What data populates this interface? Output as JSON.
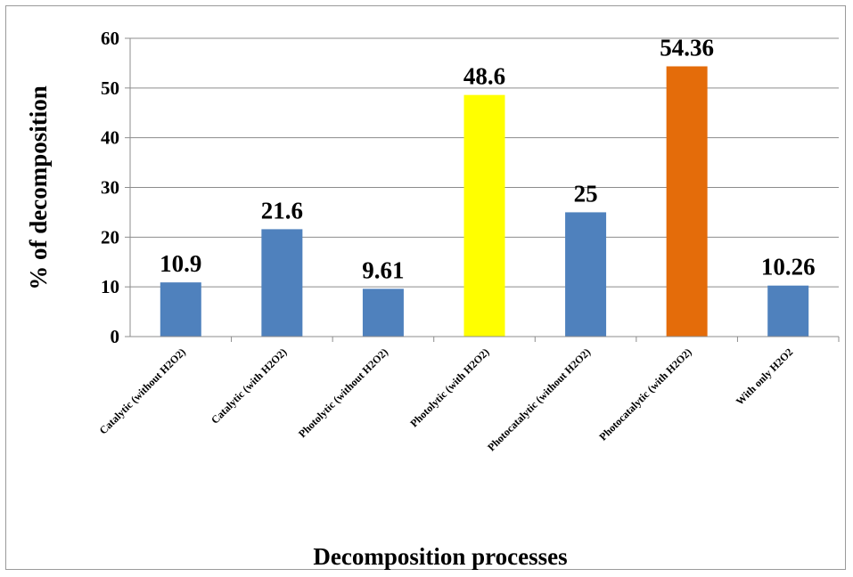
{
  "chart_data": {
    "type": "bar",
    "categories": [
      "Catalytic (without H2O2)",
      "Catalytic (with H2O2)",
      "Photolytic (without H2O2)",
      "Photolytic (with H2O2)",
      "Photocatalytic (without H2O2)",
      "Photocatalytic (with H2O2)",
      "With only H2O2"
    ],
    "values": [
      10.9,
      21.6,
      9.61,
      48.6,
      25,
      54.36,
      10.26
    ],
    "data_labels": [
      "10.9",
      "21.6",
      "9.61",
      "48.6",
      "25",
      "54.36",
      "10.26"
    ],
    "bar_colors": [
      "#4f81bd",
      "#4f81bd",
      "#4f81bd",
      "#ffff00",
      "#4f81bd",
      "#e46c0a",
      "#4f81bd"
    ],
    "xlabel": "Decomposition processes",
    "ylabel": "% of decomposition",
    "ylim": [
      0,
      60
    ],
    "yticks": [
      "0",
      "10",
      "20",
      "30",
      "40",
      "50",
      "60"
    ],
    "grid": true,
    "legend": "none"
  }
}
